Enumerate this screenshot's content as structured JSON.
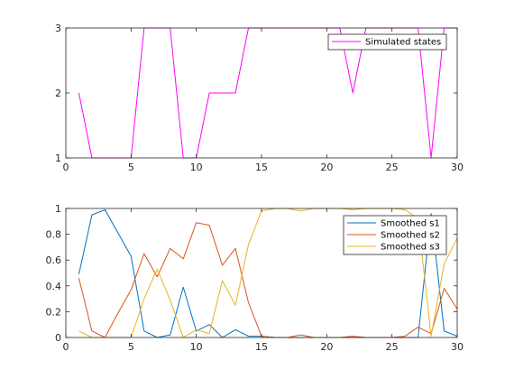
{
  "chart_data": [
    {
      "type": "line",
      "xlim": [
        0,
        30
      ],
      "ylim": [
        1,
        3
      ],
      "xticks": [
        0,
        5,
        10,
        15,
        20,
        25,
        30
      ],
      "yticks": [
        1,
        2,
        3
      ],
      "legend_location": "top-right",
      "grid": false,
      "series": [
        {
          "name": "Simulated states",
          "color": "#ff00ff",
          "x": [
            1,
            2,
            3,
            4,
            5,
            6,
            7,
            8,
            9,
            10,
            11,
            12,
            13,
            14,
            15,
            16,
            17,
            18,
            19,
            20,
            21,
            22,
            23,
            24,
            25,
            26,
            27,
            28,
            29,
            30
          ],
          "values": [
            2,
            1,
            1,
            1,
            1,
            3,
            3,
            3,
            1,
            1,
            2,
            2,
            2,
            3,
            3,
            3,
            3,
            3,
            3,
            3,
            3,
            2,
            3,
            3,
            3,
            3,
            3,
            1,
            3,
            3
          ]
        }
      ]
    },
    {
      "type": "line",
      "xlim": [
        0,
        30
      ],
      "ylim": [
        0,
        1
      ],
      "xticks": [
        0,
        5,
        10,
        15,
        20,
        25,
        30
      ],
      "yticks": [
        0,
        0.2,
        0.4,
        0.6,
        0.8,
        1
      ],
      "legend_location": "top-right",
      "grid": false,
      "series": [
        {
          "name": "Smoothed s1",
          "color": "#0072bd",
          "x": [
            1,
            2,
            3,
            4,
            5,
            6,
            7,
            8,
            9,
            10,
            11,
            12,
            13,
            14,
            15,
            16,
            17,
            18,
            19,
            20,
            21,
            22,
            23,
            24,
            25,
            26,
            27,
            28,
            29,
            30
          ],
          "values": [
            0.49,
            0.95,
            0.99,
            0.81,
            0.63,
            0.05,
            0.0,
            0.02,
            0.39,
            0.05,
            0.1,
            0.0,
            0.06,
            0.01,
            0.01,
            0.0,
            0.0,
            0.0,
            0.0,
            0.0,
            0.0,
            0.0,
            0.0,
            0.0,
            0.0,
            0.0,
            0.0,
            0.96,
            0.05,
            0.01
          ]
        },
        {
          "name": "Smoothed s2",
          "color": "#d95319",
          "x": [
            1,
            2,
            3,
            4,
            5,
            6,
            7,
            8,
            9,
            10,
            11,
            12,
            13,
            14,
            15,
            16,
            17,
            18,
            19,
            20,
            21,
            22,
            23,
            24,
            25,
            26,
            27,
            28,
            29,
            30
          ],
          "values": [
            0.46,
            0.05,
            0.0,
            0.19,
            0.37,
            0.65,
            0.47,
            0.69,
            0.61,
            0.89,
            0.87,
            0.56,
            0.69,
            0.27,
            0.01,
            0.0,
            0.0,
            0.02,
            0.0,
            0.0,
            0.0,
            0.01,
            0.0,
            0.0,
            0.0,
            0.01,
            0.08,
            0.03,
            0.38,
            0.22
          ]
        },
        {
          "name": "Smoothed s3",
          "color": "#edb120",
          "x": [
            1,
            2,
            3,
            4,
            5,
            6,
            7,
            8,
            9,
            10,
            11,
            12,
            13,
            14,
            15,
            16,
            17,
            18,
            19,
            20,
            21,
            22,
            23,
            24,
            25,
            26,
            27,
            28,
            29,
            30
          ],
          "values": [
            0.05,
            0.0,
            0.0,
            0.0,
            0.0,
            0.3,
            0.53,
            0.29,
            0.0,
            0.06,
            0.03,
            0.44,
            0.25,
            0.72,
            0.98,
            1.0,
            1.0,
            0.98,
            1.0,
            1.0,
            1.0,
            0.99,
            1.0,
            1.0,
            1.0,
            0.99,
            0.92,
            0.01,
            0.57,
            0.77
          ]
        }
      ]
    }
  ]
}
